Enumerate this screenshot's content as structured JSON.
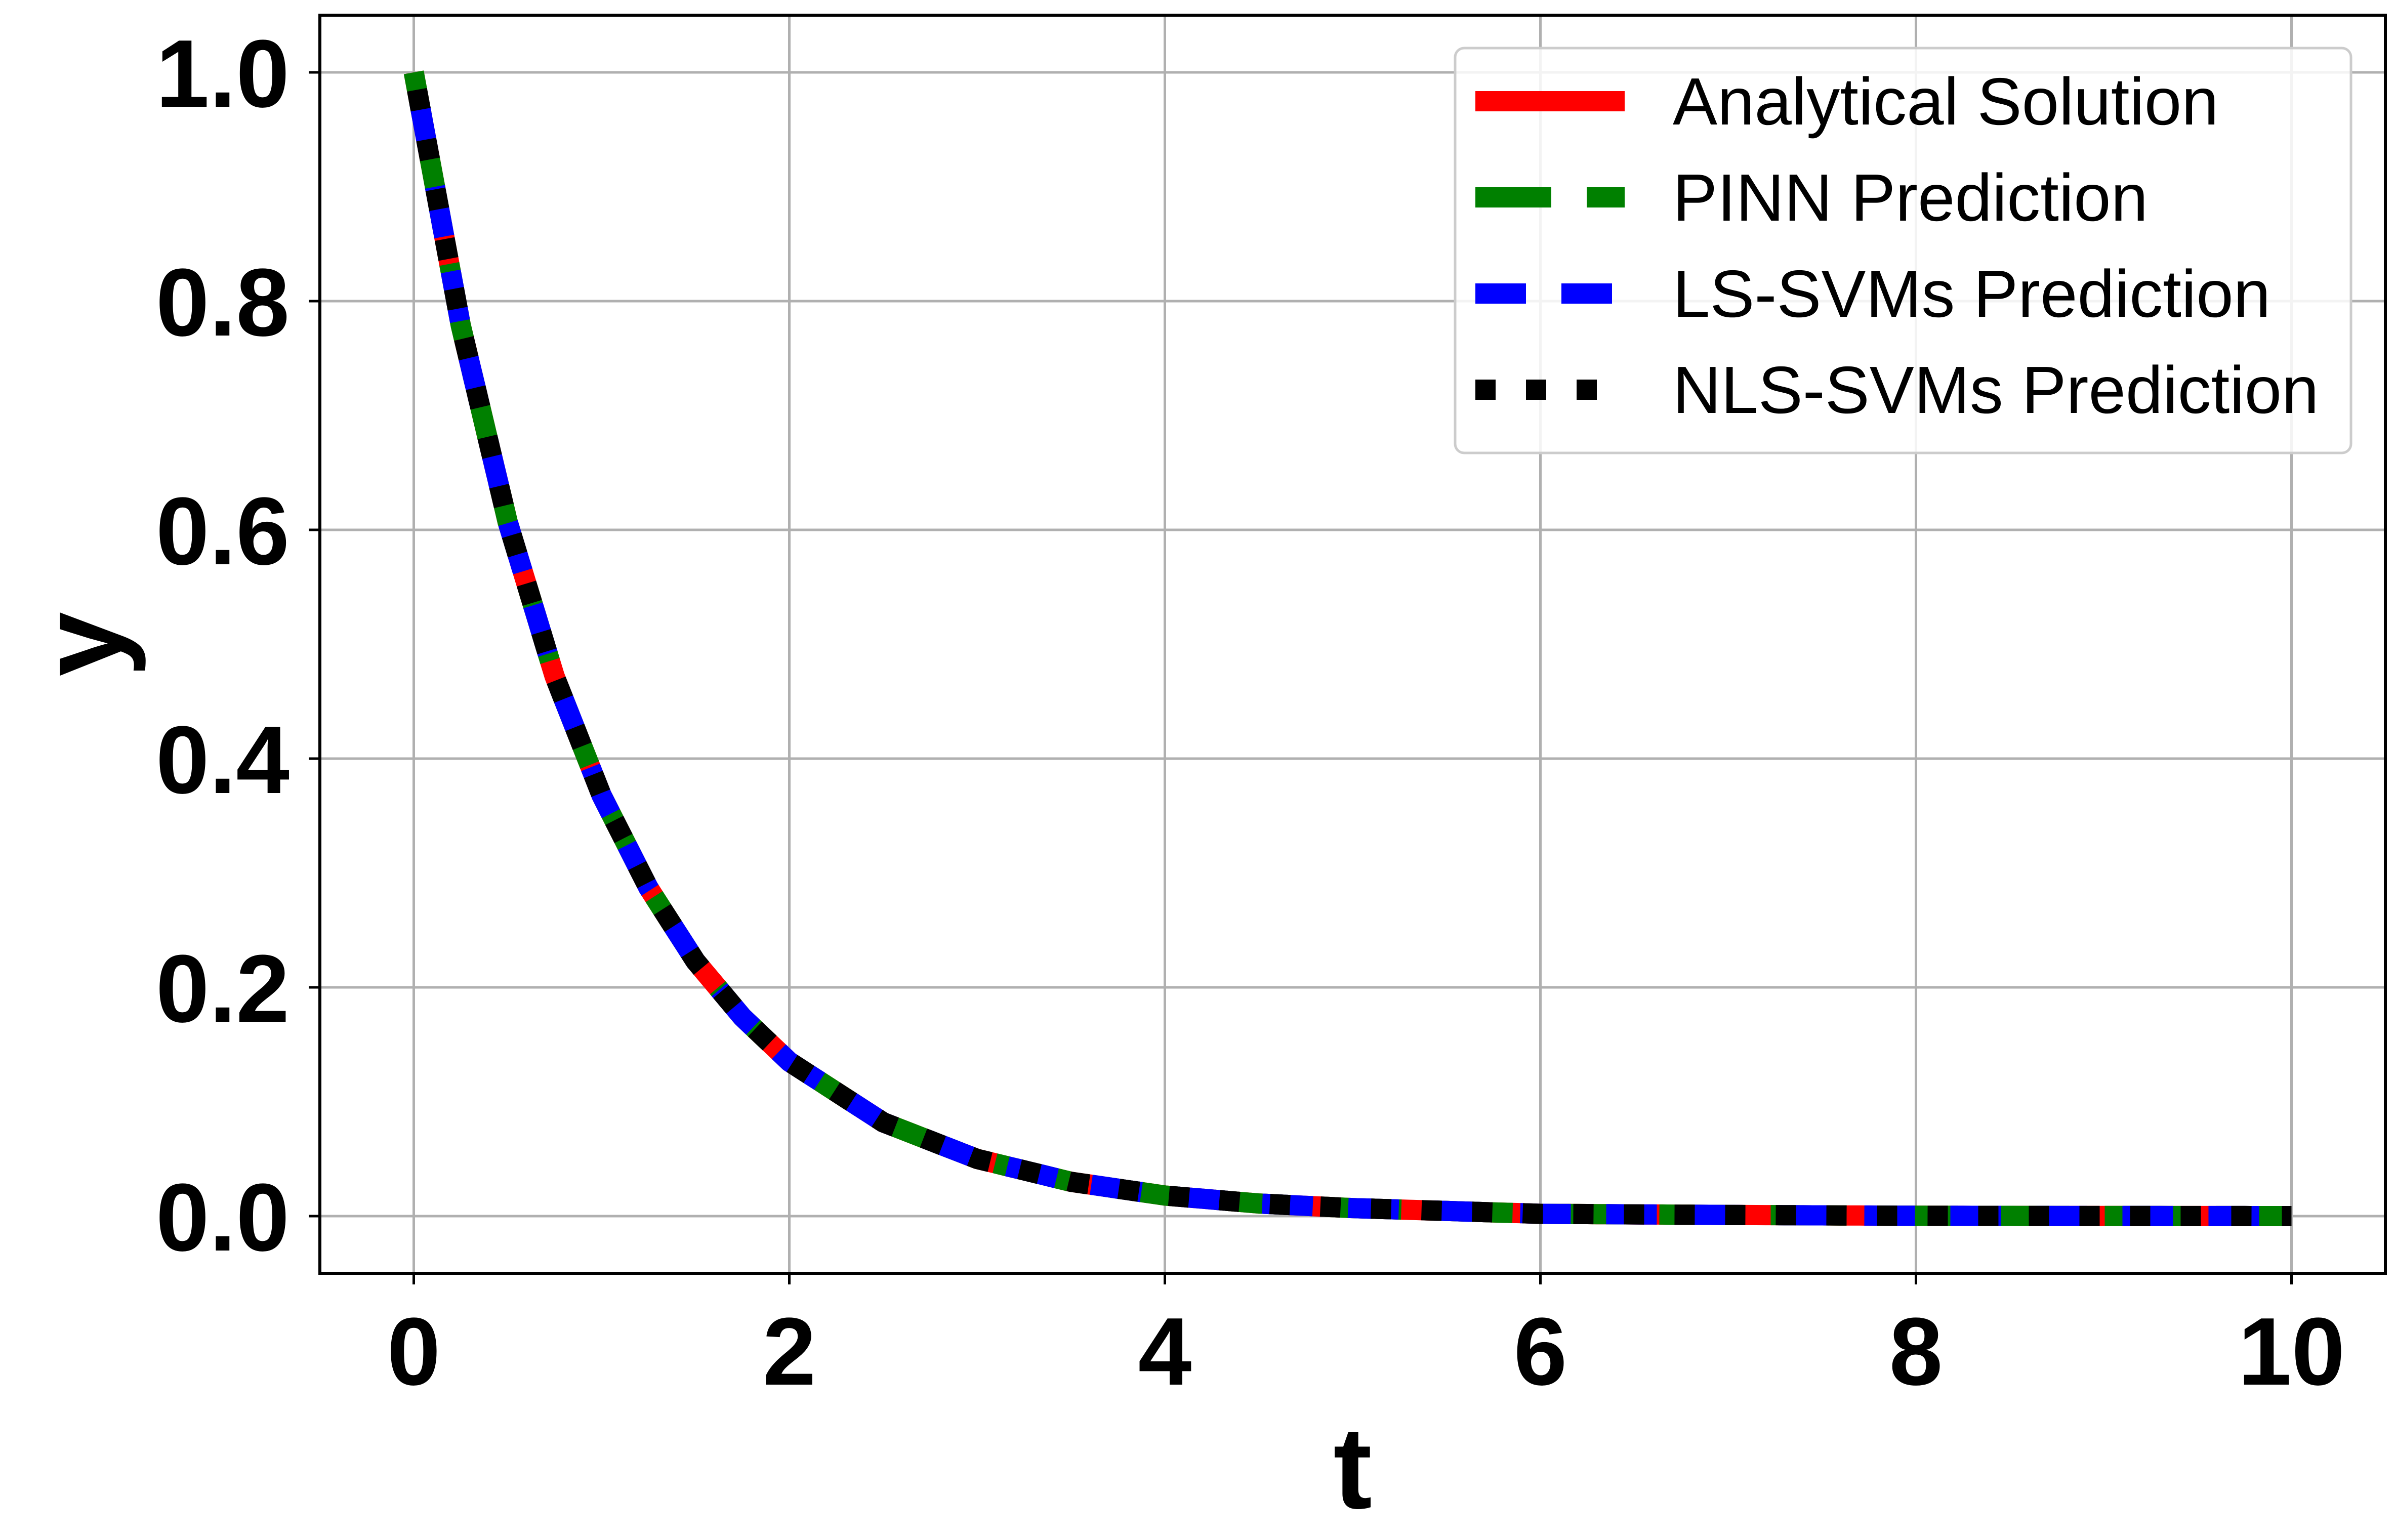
{
  "chart_data": {
    "type": "line",
    "title": "",
    "xlabel": "t",
    "ylabel": "y",
    "xlim": [
      -0.5,
      10.5
    ],
    "ylim": [
      -0.05,
      1.05
    ],
    "xticks": [
      "0",
      "2",
      "4",
      "6",
      "8",
      "10"
    ],
    "yticks": [
      "0.0",
      "0.2",
      "0.4",
      "0.6",
      "0.8",
      "1.0"
    ],
    "grid": true,
    "legend_position": "top-right",
    "x": [
      0,
      0.25,
      0.5,
      0.75,
      1,
      1.25,
      1.5,
      1.75,
      2,
      2.5,
      3,
      3.5,
      4,
      4.5,
      5,
      6,
      7,
      8,
      9,
      10
    ],
    "series": [
      {
        "name": "Analytical Solution",
        "color": "#ff0000",
        "style": "solid",
        "values": [
          1.0,
          0.779,
          0.607,
          0.472,
          0.368,
          0.287,
          0.223,
          0.174,
          0.135,
          0.082,
          0.05,
          0.03,
          0.018,
          0.011,
          0.007,
          0.002,
          0.001,
          0.0003,
          0.0001,
          0.0
        ]
      },
      {
        "name": "PINN Prediction",
        "color": "#008000",
        "style": "dashed",
        "values": [
          1.0,
          0.779,
          0.607,
          0.472,
          0.368,
          0.287,
          0.223,
          0.174,
          0.135,
          0.082,
          0.05,
          0.03,
          0.018,
          0.011,
          0.007,
          0.002,
          0.001,
          0.0003,
          0.0001,
          0.0
        ]
      },
      {
        "name": "LS-SVMs Prediction",
        "color": "#0000ff",
        "style": "dashed",
        "values": [
          1.0,
          0.779,
          0.607,
          0.472,
          0.368,
          0.287,
          0.223,
          0.174,
          0.135,
          0.082,
          0.05,
          0.03,
          0.018,
          0.011,
          0.007,
          0.002,
          0.001,
          0.0003,
          0.0001,
          0.0
        ]
      },
      {
        "name": "NLS-SVMs Prediction",
        "color": "#000000",
        "style": "dotted",
        "values": [
          1.0,
          0.779,
          0.607,
          0.472,
          0.368,
          0.287,
          0.223,
          0.174,
          0.135,
          0.082,
          0.05,
          0.03,
          0.018,
          0.011,
          0.007,
          0.002,
          0.001,
          0.0003,
          0.0001,
          0.0
        ]
      }
    ]
  }
}
